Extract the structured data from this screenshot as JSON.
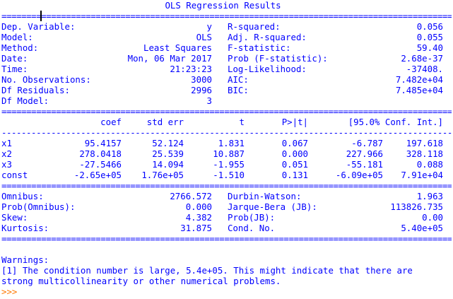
{
  "title": "OLS Regression Results",
  "summary_rows": [
    {
      "label": "Dep. Variable:",
      "value": "y",
      "stat_label": "R-squared:",
      "stat_value": "0.056"
    },
    {
      "label": "Model:",
      "value": "OLS",
      "stat_label": "Adj. R-squared:",
      "stat_value": "0.055"
    },
    {
      "label": "Method:",
      "value": "Least Squares",
      "stat_label": "F-statistic:",
      "stat_value": "59.40"
    },
    {
      "label": "Date:",
      "value": "Mon, 06 Mar 2017",
      "stat_label": "Prob (F-statistic):",
      "stat_value": "2.68e-37"
    },
    {
      "label": "Time:",
      "value": "21:23:23",
      "stat_label": "Log-Likelihood:",
      "stat_value": "-37408."
    },
    {
      "label": "No. Observations:",
      "value": "3000",
      "stat_label": "AIC:",
      "stat_value": "7.482e+04"
    },
    {
      "label": "Df Residuals:",
      "value": "2996",
      "stat_label": "BIC:",
      "stat_value": "7.485e+04"
    },
    {
      "label": "Df Model:",
      "value": "3",
      "stat_label": "",
      "stat_value": ""
    }
  ],
  "coef_header": [
    "coef",
    "std err",
    "t",
    "P>|t|",
    "[95.0% Conf. Int.]"
  ],
  "coef_rows": [
    {
      "name": "x1",
      "coef": "95.4157",
      "std_err": "52.124",
      "t": "1.831",
      "p": "0.067",
      "ci_low": "-6.787",
      "ci_high": "197.618"
    },
    {
      "name": "x2",
      "coef": "278.0418",
      "std_err": "25.539",
      "t": "10.887",
      "p": "0.000",
      "ci_low": "227.966",
      "ci_high": "328.118"
    },
    {
      "name": "x3",
      "coef": "-27.5466",
      "std_err": "14.094",
      "t": "-1.955",
      "p": "0.051",
      "ci_low": "-55.181",
      "ci_high": "0.088"
    },
    {
      "name": "const",
      "coef": "-2.65e+05",
      "std_err": "1.76e+05",
      "t": "-1.510",
      "p": "0.131",
      "ci_low": "-6.09e+05",
      "ci_high": "7.91e+04"
    }
  ],
  "diag_rows": [
    {
      "label": "Omnibus:",
      "value": "2766.572",
      "stat_label": "Durbin-Watson:",
      "stat_value": "1.963"
    },
    {
      "label": "Prob(Omnibus):",
      "value": "0.000",
      "stat_label": "Jarque-Bera (JB):",
      "stat_value": "113826.735"
    },
    {
      "label": "Skew:",
      "value": "4.382",
      "stat_label": "Prob(JB):",
      "stat_value": "0.00"
    },
    {
      "label": "Kurtosis:",
      "value": "31.875",
      "stat_label": "Cond. No.",
      "stat_value": "5.40e+05"
    }
  ],
  "warnings": {
    "heading": "Warnings:",
    "line1": "[1] The condition number is large, 5.4e+05. This might indicate that there are",
    "line2": "strong multicollinearity or other numerical problems."
  },
  "prompt": ">>>",
  "colors": {
    "text": "#0000ff",
    "prompt": "#ff7700",
    "background": "#ffffff"
  }
}
